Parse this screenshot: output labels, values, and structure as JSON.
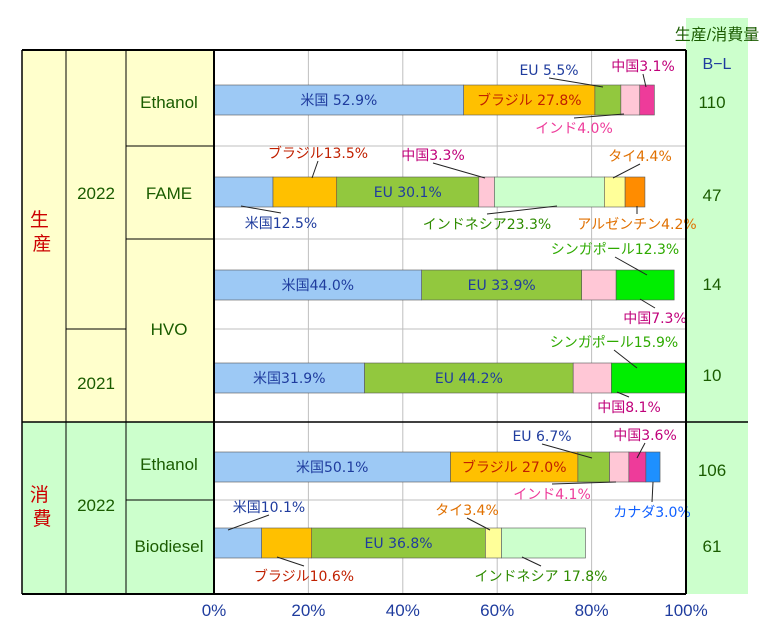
{
  "header": {
    "title": "生産/消費量",
    "unit": "B−L"
  },
  "sections": [
    {
      "label": "生産",
      "color": "#cc0000"
    },
    {
      "label": "消費",
      "color": "#cc0000"
    }
  ],
  "years": [
    "2022",
    "2021",
    "2022"
  ],
  "fuels": [
    "Ethanol",
    "FAME",
    "HVO",
    "Ethanol",
    "Biodiesel"
  ],
  "chart_data": {
    "type": "bar",
    "orientation": "horizontal",
    "stacked": true,
    "xlim": [
      0,
      100
    ],
    "x_ticks": [
      "0%",
      "20%",
      "40%",
      "60%",
      "80%",
      "100%"
    ],
    "grid": true,
    "bars": [
      {
        "group": "生産",
        "year": "2022",
        "fuel": "Ethanol",
        "total": "110",
        "segments": [
          {
            "name": "米国",
            "label": "米国 52.9%",
            "value": 52.9,
            "color": "#9dc9f5",
            "text_color": "#1f3c9e"
          },
          {
            "name": "ブラジル",
            "label": "ブラジル 27.8%",
            "value": 27.8,
            "color": "#ffc000",
            "text_color": "#c02000"
          },
          {
            "name": "EU",
            "label": "EU 5.5%",
            "value": 5.5,
            "color": "#92c83e",
            "text_color": "#1f3c9e"
          },
          {
            "name": "インド",
            "label": "インド4.0%",
            "value": 4.0,
            "color": "#ffc7d6",
            "text_color": "#ee3b9a"
          },
          {
            "name": "中国",
            "label": "中国3.1%",
            "value": 3.1,
            "color": "#ee3b9a",
            "text_color": "#c0007a"
          }
        ]
      },
      {
        "group": "生産",
        "year": "2022",
        "fuel": "FAME",
        "total": "47",
        "segments": [
          {
            "name": "米国",
            "label": "米国12.5%",
            "value": 12.5,
            "color": "#9dc9f5",
            "text_color": "#1f3c9e"
          },
          {
            "name": "ブラジル",
            "label": "ブラジル13.5%",
            "value": 13.5,
            "color": "#ffc000",
            "text_color": "#c02000"
          },
          {
            "name": "EU",
            "label": "EU 30.1%",
            "value": 30.1,
            "color": "#92c83e",
            "text_color": "#1f3c9e"
          },
          {
            "name": "中国",
            "label": "中国3.3%",
            "value": 3.3,
            "color": "#ffc7d6",
            "text_color": "#c0007a"
          },
          {
            "name": "インドネシア",
            "label": "インドネシア23.3%",
            "value": 23.3,
            "color": "#ccffcc",
            "text_color": "#2e8b00"
          },
          {
            "name": "タイ",
            "label": "タイ4.4%",
            "value": 4.4,
            "color": "#ffff99",
            "text_color": "#e07000"
          },
          {
            "name": "アルゼンチン",
            "label": "アルゼンチン4.2%",
            "value": 4.2,
            "color": "#ff8c00",
            "text_color": "#e07000"
          }
        ]
      },
      {
        "group": "生産",
        "year": "2022",
        "fuel": "HVO",
        "total": "14",
        "segments": [
          {
            "name": "米国",
            "label": "米国44.0%",
            "value": 44.0,
            "color": "#9dc9f5",
            "text_color": "#1f3c9e"
          },
          {
            "name": "EU",
            "label": "EU 33.9%",
            "value": 33.9,
            "color": "#92c83e",
            "text_color": "#1f3c9e"
          },
          {
            "name": "中国",
            "label": "中国7.3%",
            "value": 7.3,
            "color": "#ffc7d6",
            "text_color": "#c0007a"
          },
          {
            "name": "シンガポール",
            "label": "シンガポール12.3%",
            "value": 12.3,
            "color": "#00ee00",
            "text_color": "#2eaa00"
          }
        ]
      },
      {
        "group": "生産",
        "year": "2021",
        "fuel": "HVO",
        "total": "10",
        "segments": [
          {
            "name": "米国",
            "label": "米国31.9%",
            "value": 31.9,
            "color": "#9dc9f5",
            "text_color": "#1f3c9e"
          },
          {
            "name": "EU",
            "label": "EU 44.2%",
            "value": 44.2,
            "color": "#92c83e",
            "text_color": "#1f3c9e"
          },
          {
            "name": "中国",
            "label": "中国8.1%",
            "value": 8.1,
            "color": "#ffc7d6",
            "text_color": "#c0007a"
          },
          {
            "name": "シンガポール",
            "label": "シンガポール15.9%",
            "value": 15.9,
            "color": "#00ee00",
            "text_color": "#2eaa00"
          }
        ]
      },
      {
        "group": "消費",
        "year": "2022",
        "fuel": "Ethanol",
        "total": "106",
        "segments": [
          {
            "name": "米国",
            "label": "米国50.1%",
            "value": 50.1,
            "color": "#9dc9f5",
            "text_color": "#1f3c9e"
          },
          {
            "name": "ブラジル",
            "label": "ブラジル 27.0%",
            "value": 27.0,
            "color": "#ffc000",
            "text_color": "#c02000"
          },
          {
            "name": "EU",
            "label": "EU 6.7%",
            "value": 6.7,
            "color": "#92c83e",
            "text_color": "#1f3c9e"
          },
          {
            "name": "インド",
            "label": "インド4.1%",
            "value": 4.1,
            "color": "#ffc7d6",
            "text_color": "#ee3b9a"
          },
          {
            "name": "中国",
            "label": "中国3.6%",
            "value": 3.6,
            "color": "#ee3b9a",
            "text_color": "#c0007a"
          },
          {
            "name": "カナダ",
            "label": "カナダ3.0%",
            "value": 3.0,
            "color": "#1e90ff",
            "text_color": "#1060ff"
          }
        ]
      },
      {
        "group": "消費",
        "year": "2022",
        "fuel": "Biodiesel",
        "total": "61",
        "segments": [
          {
            "name": "米国",
            "label": "米国10.1%",
            "value": 10.1,
            "color": "#9dc9f5",
            "text_color": "#1f3c9e"
          },
          {
            "name": "ブラジル",
            "label": "ブラジル10.6%",
            "value": 10.6,
            "color": "#ffc000",
            "text_color": "#c02000"
          },
          {
            "name": "EU",
            "label": "EU 36.8%",
            "value": 36.8,
            "color": "#92c83e",
            "text_color": "#1f3c9e"
          },
          {
            "name": "タイ",
            "label": "タイ3.4%",
            "value": 3.4,
            "color": "#ffff99",
            "text_color": "#e07000"
          },
          {
            "name": "インドネシア",
            "label": "インドネシア 17.8%",
            "value": 17.8,
            "color": "#ccffcc",
            "text_color": "#2e8b00"
          }
        ]
      }
    ]
  }
}
